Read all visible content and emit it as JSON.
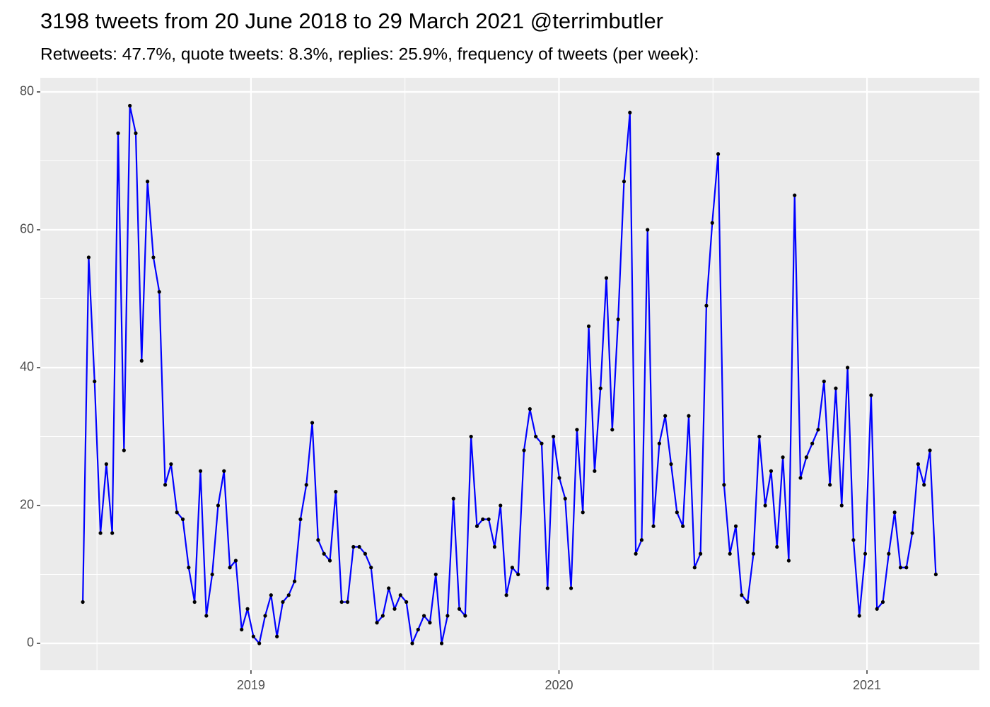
{
  "chart_data": {
    "type": "line",
    "title": "3198 tweets from 20 June 2018 to 29 March 2021 @terrimbutler",
    "subtitle": "Retweets: 47.7%, quote tweets: 8.3%, replies: 25.9%, frequency of tweets (per week):",
    "x": [
      2018.454,
      2018.4731,
      2018.4922,
      2018.5113,
      2018.5304,
      2018.5495,
      2018.5686,
      2018.5877,
      2018.6068,
      2018.6259,
      2018.645,
      2018.6641,
      2018.6832,
      2018.7023,
      2018.7214,
      2018.7405,
      2018.7596,
      2018.7787,
      2018.7978,
      2018.8169,
      2018.836,
      2018.8551,
      2018.8742,
      2018.8933,
      2018.9124,
      2018.9315,
      2018.9506,
      2018.9697,
      2018.9888,
      2019.0079,
      2019.027,
      2019.0461,
      2019.0652,
      2019.0843,
      2019.1034,
      2019.1225,
      2019.1416,
      2019.1607,
      2019.1798,
      2019.1989,
      2019.218,
      2019.2371,
      2019.2562,
      2019.2753,
      2019.2944,
      2019.3135,
      2019.3326,
      2019.3517,
      2019.3708,
      2019.3899,
      2019.409,
      2019.4281,
      2019.4472,
      2019.4663,
      2019.4854,
      2019.5045,
      2019.5236,
      2019.5427,
      2019.5618,
      2019.5809,
      2019.6,
      2019.6191,
      2019.6382,
      2019.6573,
      2019.6764,
      2019.6955,
      2019.7146,
      2019.7337,
      2019.7528,
      2019.7719,
      2019.791,
      2019.8101,
      2019.8292,
      2019.8483,
      2019.8674,
      2019.8865,
      2019.9056,
      2019.9247,
      2019.9438,
      2019.9629,
      2019.982,
      2020.0011,
      2020.0202,
      2020.0393,
      2020.0584,
      2020.0775,
      2020.0966,
      2020.1157,
      2020.1348,
      2020.1539,
      2020.173,
      2020.1921,
      2020.2112,
      2020.2303,
      2020.2494,
      2020.2685,
      2020.2876,
      2020.3067,
      2020.3258,
      2020.3449,
      2020.364,
      2020.3831,
      2020.4022,
      2020.4213,
      2020.4404,
      2020.4595,
      2020.4786,
      2020.4977,
      2020.5168,
      2020.5359,
      2020.555,
      2020.5741,
      2020.5932,
      2020.6123,
      2020.6314,
      2020.6505,
      2020.6696,
      2020.6887,
      2020.7078,
      2020.7269,
      2020.746,
      2020.7651,
      2020.7842,
      2020.8033,
      2020.8224,
      2020.8415,
      2020.8606,
      2020.8797,
      2020.8988,
      2020.9179,
      2020.937,
      2020.9561,
      2020.9752,
      2020.9943,
      2021.0134,
      2021.0325,
      2021.0516,
      2021.0707,
      2021.0898,
      2021.1089,
      2021.128,
      2021.1471,
      2021.1662,
      2021.1853,
      2021.2044,
      2021.2235
    ],
    "series": [
      {
        "color": "#0000ff",
        "point_color": "#000000",
        "values": [
          6,
          56,
          38,
          16,
          26,
          16,
          74,
          28,
          78,
          74,
          41,
          67,
          56,
          51,
          23,
          26,
          19,
          18,
          11,
          6,
          25,
          4,
          10,
          20,
          25,
          11,
          12,
          2,
          5,
          1,
          0,
          4,
          7,
          1,
          6,
          7,
          9,
          18,
          23,
          32,
          15,
          13,
          12,
          22,
          6,
          6,
          14,
          14,
          13,
          11,
          3,
          4,
          8,
          5,
          7,
          6,
          0,
          2,
          4,
          3,
          10,
          0,
          4,
          21,
          5,
          4,
          30,
          17,
          18,
          18,
          14,
          20,
          7,
          11,
          10,
          28,
          34,
          30,
          29,
          8,
          30,
          24,
          21,
          8,
          31,
          19,
          46,
          25,
          37,
          53,
          31,
          47,
          67,
          77,
          13,
          15,
          60,
          17,
          29,
          33,
          26,
          19,
          17,
          33,
          11,
          13,
          49,
          61,
          71,
          23,
          13,
          17,
          7,
          6,
          13,
          30,
          20,
          25,
          14,
          27,
          12,
          65,
          24,
          27,
          29,
          31,
          38,
          23,
          37,
          20,
          40,
          15,
          4,
          13,
          36,
          5,
          6,
          13,
          19,
          11,
          11,
          16,
          26,
          23,
          28,
          10
        ]
      }
    ],
    "xlim": [
      2018.316,
      2021.365
    ],
    "xticks": [
      2019,
      2020,
      2021
    ],
    "ylim": [
      -3.9,
      82.05
    ],
    "yticks": [
      0,
      20,
      40,
      60,
      80
    ],
    "grid": true,
    "panel_color": "#ebebeb"
  }
}
